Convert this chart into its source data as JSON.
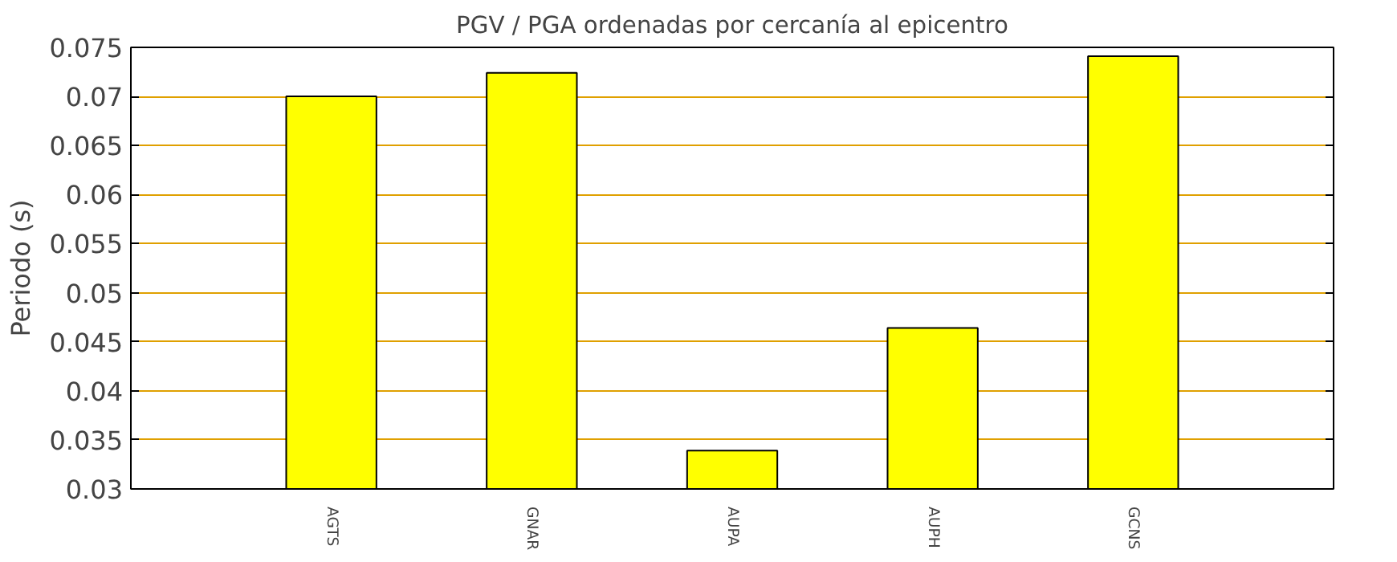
{
  "chart_data": {
    "type": "bar",
    "title": "PGV / PGA ordenadas por cercanía al epicentro",
    "ylabel": "Periodo (s)",
    "categories": [
      "AGTS",
      "GNAR",
      "AUPA",
      "AUPH",
      "GCNS"
    ],
    "values": [
      0.07,
      0.0724,
      0.0339,
      0.0464,
      0.0741
    ],
    "color": "#ffff00",
    "ylim": [
      0.03,
      0.075
    ],
    "yticks": [
      0.03,
      0.035,
      0.04,
      0.045,
      0.05,
      0.055,
      0.06,
      0.065,
      0.07,
      0.075
    ],
    "grid": "y"
  }
}
